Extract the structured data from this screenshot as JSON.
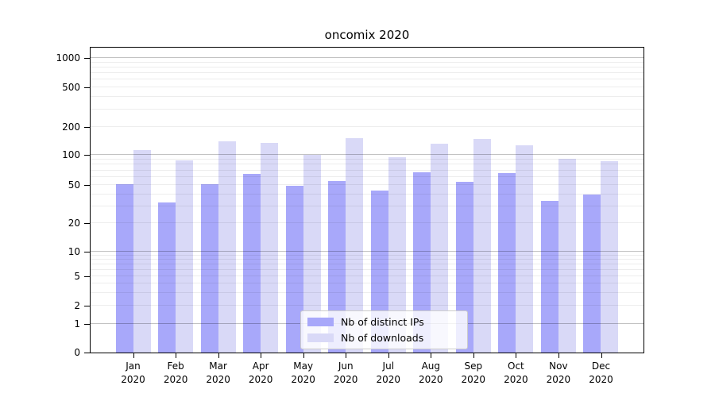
{
  "chart_data": {
    "type": "bar",
    "title": "oncomix 2020",
    "categories": [
      "Jan",
      "Feb",
      "Mar",
      "Apr",
      "May",
      "Jun",
      "Jul",
      "Aug",
      "Sep",
      "Oct",
      "Nov",
      "Dec"
    ],
    "x_year": "2020",
    "series": [
      {
        "name": "Nb of distinct IPs",
        "color": "#a8a8fa",
        "values": [
          51,
          33,
          51,
          65,
          49,
          55,
          44,
          67,
          54,
          66,
          34,
          40
        ]
      },
      {
        "name": "Nb of downloads",
        "color": "#d9d9f7",
        "values": [
          112,
          88,
          140,
          134,
          101,
          152,
          95,
          131,
          150,
          128,
          92,
          87
        ]
      }
    ],
    "y_ticks": [
      0,
      1,
      2,
      5,
      10,
      20,
      50,
      100,
      200,
      500,
      1000
    ],
    "y_major_gridlines": [
      1,
      10,
      100,
      1000
    ],
    "y_minor_gridline_bases": [
      1,
      10,
      100
    ],
    "ylim": [
      0,
      1400
    ],
    "y_scale": "symlog-like",
    "grid": true,
    "legend_position": "lower-center-inside",
    "xlabel": "",
    "ylabel": ""
  }
}
